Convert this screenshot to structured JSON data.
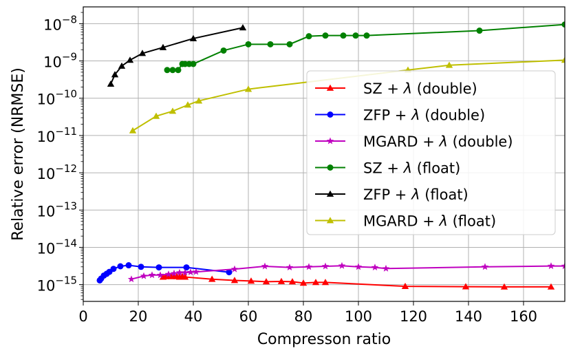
{
  "chart_data": {
    "type": "line",
    "title": "",
    "xlabel": "Compresson ratio",
    "ylabel": "Relative error (NRMSE)",
    "xlim": [
      0,
      175
    ],
    "yscale": "log",
    "ylim_exp": [
      -15.45,
      -7.55
    ],
    "grid": true,
    "x_ticks": [
      0,
      20,
      40,
      60,
      80,
      100,
      120,
      140,
      160
    ],
    "x_tick_labels": [
      "0",
      "20",
      "40",
      "60",
      "80",
      "100",
      "120",
      "140",
      "160"
    ],
    "y_ticks_exp": [
      -15,
      -14,
      -13,
      -12,
      -11,
      -10,
      -9,
      -8
    ],
    "y_tick_labels": [
      {
        "base": "10",
        "exp": "−15"
      },
      {
        "base": "10",
        "exp": "−14"
      },
      {
        "base": "10",
        "exp": "−13"
      },
      {
        "base": "10",
        "exp": "−12"
      },
      {
        "base": "10",
        "exp": "−11"
      },
      {
        "base": "10",
        "exp": "−10"
      },
      {
        "base": "10",
        "exp": "−9"
      },
      {
        "base": "10",
        "exp": "−8"
      }
    ],
    "legend_position": "center-right",
    "series": [
      {
        "name": "SZ + λ (double)",
        "legend_prefix": "SZ + ",
        "legend_suffix": " (double)",
        "color": "#ff0000",
        "marker": "triangle",
        "x": [
          29,
          30,
          31,
          32,
          33,
          34,
          35,
          36,
          37,
          46.8,
          55,
          61,
          66.5,
          72,
          76,
          80,
          84.5,
          88,
          117,
          139,
          153,
          170
        ],
        "y": [
          1.6e-15,
          1.65e-15,
          1.7e-15,
          1.65e-15,
          1.7e-15,
          1.65e-15,
          1.6e-15,
          1.65e-15,
          1.6e-15,
          1.4e-15,
          1.3e-15,
          1.25e-15,
          1.2e-15,
          1.22e-15,
          1.2e-15,
          1.1e-15,
          1.15e-15,
          1.15e-15,
          9e-16,
          8.8e-16,
          8.7e-16,
          8.7e-16
        ]
      },
      {
        "name": "ZFP + λ (double)",
        "legend_prefix": "ZFP + ",
        "legend_suffix": " (double)",
        "color": "#0000ff",
        "marker": "circle",
        "x": [
          6,
          6.5,
          7.5,
          8.5,
          9.5,
          11,
          13.5,
          16.5,
          21,
          27.5,
          37.5,
          53
        ],
        "y": [
          1.3e-15,
          1.45e-15,
          1.75e-15,
          1.95e-15,
          2.2e-15,
          2.65e-15,
          3.1e-15,
          3.3e-15,
          3e-15,
          2.9e-15,
          2.9e-15,
          2.15e-15
        ]
      },
      {
        "name": "MGARD + λ (double)",
        "legend_prefix": "MGARD + ",
        "legend_suffix": " (double)",
        "color": "#bf00bf",
        "marker": "star",
        "x": [
          17.5,
          22,
          25,
          28,
          31,
          33,
          35,
          37,
          39,
          41,
          55,
          66,
          75,
          82,
          88,
          94,
          100,
          106,
          110,
          146,
          170,
          175
        ],
        "y": [
          1.4e-15,
          1.7e-15,
          1.8e-15,
          1.8e-15,
          1.9e-15,
          2e-15,
          2.1e-15,
          2.1e-15,
          2.15e-15,
          2.2e-15,
          2.6e-15,
          3.1e-15,
          2.9e-15,
          3e-15,
          3.1e-15,
          3.2e-15,
          3e-15,
          2.9e-15,
          2.7e-15,
          3e-15,
          3.15e-15,
          3.15e-15
        ]
      },
      {
        "name": "SZ + λ (float)",
        "legend_prefix": "SZ + ",
        "legend_suffix": " (float)",
        "color": "#008000",
        "marker": "circle",
        "x": [
          30.5,
          32.5,
          34.5,
          36,
          37,
          38.5,
          40,
          51,
          60,
          68,
          75,
          82,
          88,
          94.5,
          99,
          103,
          144,
          175
        ],
        "y": [
          5.7e-10,
          5.7e-10,
          5.7e-10,
          8.3e-10,
          8.3e-10,
          8.3e-10,
          8.3e-10,
          1.9e-09,
          2.8e-09,
          2.8e-09,
          2.8e-09,
          4.6e-09,
          4.8e-09,
          4.8e-09,
          4.8e-09,
          4.8e-09,
          6.5e-09,
          9.5e-09
        ]
      },
      {
        "name": "ZFP + λ (float)",
        "legend_prefix": "ZFP + ",
        "legend_suffix": " (float)",
        "color": "#000000",
        "marker": "triangle",
        "x": [
          10,
          11.5,
          14,
          17,
          21.5,
          29,
          40,
          58
        ],
        "y": [
          2.4e-10,
          4.3e-10,
          7.3e-10,
          1.05e-09,
          1.6e-09,
          2.3e-09,
          4e-09,
          7.8e-09
        ]
      },
      {
        "name": "MGARD + λ (float)",
        "legend_prefix": "MGARD + ",
        "legend_suffix": " (float)",
        "color": "#bfbf00",
        "marker": "triangle",
        "x": [
          18,
          26.5,
          32.5,
          38,
          42,
          60,
          118,
          133,
          175
        ],
        "y": [
          1.35e-11,
          3.3e-11,
          4.5e-11,
          6.6e-11,
          8.5e-11,
          1.75e-10,
          5.7e-10,
          7.7e-10,
          1.05e-09
        ]
      }
    ]
  }
}
